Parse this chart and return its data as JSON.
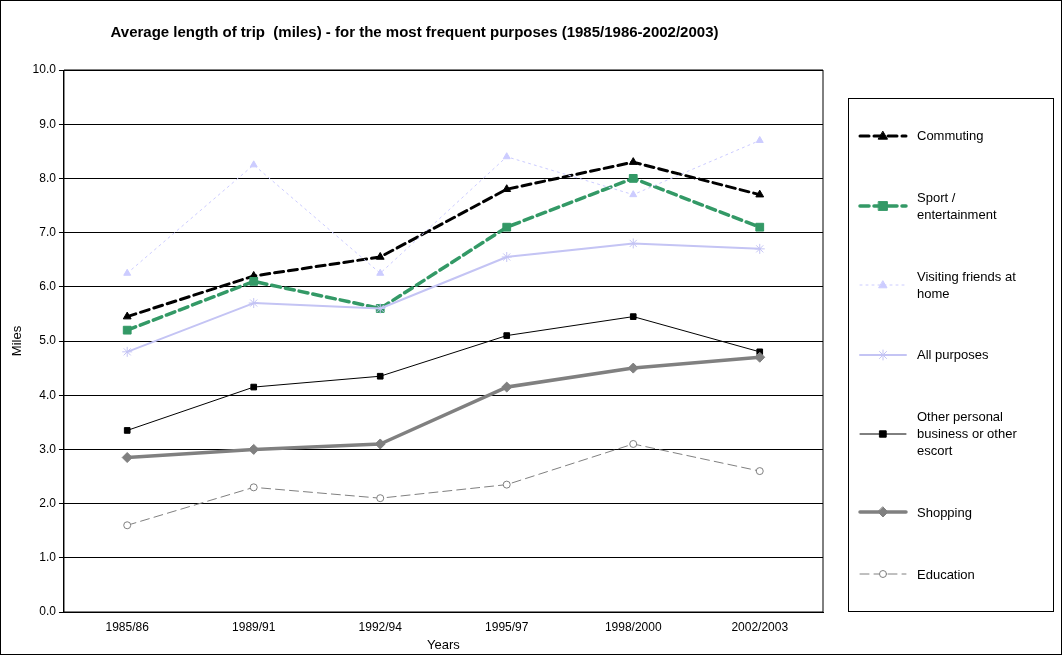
{
  "chart_data": {
    "type": "line",
    "title": "Average length of trip  (miles) - for the most frequent purposes (1985/1986-2002/2003)",
    "xlabel": "Years",
    "ylabel": "Miles",
    "categories": [
      "1985/86",
      "1989/91",
      "1992/94",
      "1995/97",
      "1998/2000",
      "2002/2003"
    ],
    "ylim": [
      0,
      10
    ],
    "yticks": [
      {
        "value": 0,
        "label": "0.0"
      },
      {
        "value": 1,
        "label": "1.0"
      },
      {
        "value": 2,
        "label": "2.0"
      },
      {
        "value": 3,
        "label": "3.0"
      },
      {
        "value": 4,
        "label": "4.0"
      },
      {
        "value": 5,
        "label": "5.0"
      },
      {
        "value": 6,
        "label": "6.0"
      },
      {
        "value": 7,
        "label": "7.0"
      },
      {
        "value": 8,
        "label": "8.0"
      },
      {
        "value": 9,
        "label": "9.0"
      },
      {
        "value": 10,
        "label": "10.0"
      }
    ],
    "grid": "y",
    "legend": "right",
    "series": [
      {
        "name": "Commuting",
        "color": "#000000",
        "marker": "triangle",
        "line_style": "dashed",
        "values": [
          5.45,
          6.2,
          6.55,
          7.8,
          8.3,
          7.7
        ]
      },
      {
        "name": "Sport / entertainment",
        "color": "#339966",
        "marker": "square",
        "line_style": "dashed",
        "values": [
          5.2,
          6.1,
          5.6,
          7.1,
          8.0,
          7.1
        ]
      },
      {
        "name": "Visiting friends at home",
        "color": "#ccccff",
        "marker": "triangle",
        "line_style": "dotted",
        "values": [
          6.25,
          8.25,
          6.25,
          8.4,
          7.7,
          8.7
        ]
      },
      {
        "name": "All purposes",
        "color": "#c4c4f4",
        "marker": "cross",
        "line_style": "solid",
        "values": [
          4.8,
          5.7,
          5.6,
          6.55,
          6.8,
          6.7
        ]
      },
      {
        "name": "Other personal business or other escort",
        "color": "#000000",
        "marker": "square",
        "line_style": "solid",
        "values": [
          3.35,
          4.15,
          4.35,
          5.1,
          5.45,
          4.8
        ]
      },
      {
        "name": "Shopping",
        "color": "#808080",
        "marker": "diamond",
        "line_style": "solid",
        "values": [
          2.85,
          3.0,
          3.1,
          4.15,
          4.5,
          4.7
        ]
      },
      {
        "name": "Education",
        "color": "#808080",
        "marker": "circle",
        "line_style": "dashed",
        "values": [
          1.6,
          2.3,
          2.1,
          2.35,
          3.1,
          2.6
        ]
      }
    ]
  }
}
